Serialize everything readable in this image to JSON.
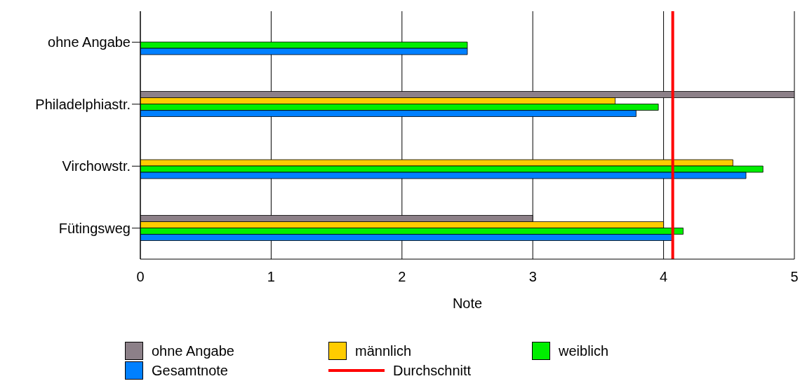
{
  "chart_data": {
    "type": "bar",
    "orientation": "horizontal",
    "xlabel": "Note",
    "categories": [
      "ohne Angabe",
      "Philadelphiastr.",
      "Virchowstr.",
      "Fütingsweg"
    ],
    "series": [
      {
        "name": "ohne Angabe",
        "color": "#8c8088",
        "values": [
          null,
          5.0,
          null,
          3.0
        ]
      },
      {
        "name": "männlich",
        "color": "#ffcc00",
        "values": [
          null,
          3.63,
          4.53,
          4.0
        ]
      },
      {
        "name": "weiblich",
        "color": "#00ee00",
        "values": [
          2.5,
          3.96,
          4.76,
          4.15
        ]
      },
      {
        "name": "Gesamtnote",
        "color": "#0080ff",
        "values": [
          2.5,
          3.79,
          4.63,
          4.07
        ]
      }
    ],
    "xlim": [
      0,
      5
    ],
    "xticks": [
      0,
      1,
      2,
      3,
      4,
      5
    ],
    "grid": "x",
    "legend": "bottom",
    "ref_lines": [
      {
        "axis": "x",
        "value": 4.07,
        "label": "Durchschnitt",
        "color": "#ff0000"
      }
    ]
  }
}
